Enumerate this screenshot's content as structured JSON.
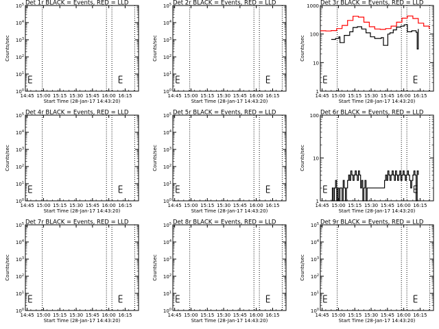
{
  "figure": {
    "panel_rows": 3,
    "panel_cols": 3,
    "colors": {
      "events": "#000000",
      "lld": "#ff0000",
      "axes": "#000000",
      "background": "#ffffff"
    }
  },
  "chart_data": [
    {
      "type": "line",
      "title": "Det 1r BLACK = Events, RED = LLD",
      "xlabel": "Start Time (28-Jan-17 14:43:20)",
      "ylabel": "Counts/sec",
      "x_ticks": [
        "14:45",
        "15:00",
        "15:15",
        "15:30",
        "15:45",
        "16:00",
        "16:15"
      ],
      "x_tick_minutes": [
        1.67,
        16.67,
        31.67,
        46.67,
        61.67,
        76.67,
        91.67
      ],
      "xlim_minutes": [
        0,
        104
      ],
      "yscale": "log",
      "ylim": [
        1,
        100000
      ],
      "y_ticks": [
        "10^0",
        "10^1",
        "10^2",
        "10^3",
        "10^4",
        "10^5"
      ],
      "y_tick_values": [
        1,
        10,
        100,
        1000,
        10000,
        100000
      ],
      "vlines_minutes": [
        15.5,
        74.5,
        79.5,
        100.5
      ],
      "series": []
    },
    {
      "type": "line",
      "title": "Det 2r BLACK = Events, RED = LLD",
      "xlabel": "Start Time (28-Jan-17 14:43:20)",
      "ylabel": "Counts/sec",
      "x_ticks": [
        "14:45",
        "15:00",
        "15:15",
        "15:30",
        "15:45",
        "16:00",
        "16:15"
      ],
      "x_tick_minutes": [
        1.67,
        16.67,
        31.67,
        46.67,
        61.67,
        76.67,
        91.67
      ],
      "xlim_minutes": [
        0,
        104
      ],
      "yscale": "log",
      "ylim": [
        1,
        100000
      ],
      "y_ticks": [
        "10^0",
        "10^1",
        "10^2",
        "10^3",
        "10^4",
        "10^5"
      ],
      "y_tick_values": [
        1,
        10,
        100,
        1000,
        10000,
        100000
      ],
      "vlines_minutes": [
        15.5,
        74.5,
        79.5,
        100.5
      ],
      "series": []
    },
    {
      "type": "line",
      "title": "Det 3r BLACK = Events, RED = LLD",
      "xlabel": "Start Time (28-Jan-17 14:43:20)",
      "ylabel": "Counts/sec",
      "x_ticks": [
        "14:45",
        "15:00",
        "15:15",
        "15:30",
        "15:45",
        "16:00",
        "16:15"
      ],
      "x_tick_minutes": [
        1.67,
        16.67,
        31.67,
        46.67,
        61.67,
        76.67,
        91.67
      ],
      "xlim_minutes": [
        0,
        104
      ],
      "yscale": "log",
      "ylim": [
        1,
        1000
      ],
      "y_ticks": [
        "1",
        "10",
        "100",
        "1000"
      ],
      "y_tick_values": [
        1,
        10,
        100,
        1000
      ],
      "vlines_minutes": [
        15.5,
        74.5,
        79.5,
        100.5
      ],
      "series": [
        {
          "color": "#ff0000",
          "x": [
            0,
            5,
            10,
            15,
            20,
            25,
            30,
            35,
            40,
            45,
            50,
            55,
            60,
            65,
            70,
            75,
            80,
            85,
            90,
            95,
            100
          ],
          "y": [
            130,
            128,
            132,
            155,
            200,
            300,
            420,
            390,
            260,
            180,
            150,
            145,
            155,
            190,
            260,
            360,
            430,
            350,
            240,
            190,
            150
          ]
        },
        {
          "color": "#000000",
          "x": [
            10,
            14,
            17,
            18,
            22,
            27,
            30,
            34,
            38,
            42,
            46,
            50,
            56,
            58,
            62,
            64,
            67,
            70,
            74,
            77,
            79,
            80,
            84,
            88,
            89,
            90
          ],
          "y": [
            65,
            70,
            80,
            50,
            90,
            120,
            170,
            180,
            150,
            110,
            80,
            70,
            75,
            40,
            100,
            110,
            140,
            175,
            190,
            210,
            215,
            120,
            130,
            115,
            30,
            150
          ]
        }
      ]
    },
    {
      "type": "line",
      "title": "Det 4r BLACK = Events, RED = LLD",
      "xlabel": "Start Time (28-Jan-17 14:43:20)",
      "ylabel": "Counts/sec",
      "x_ticks": [
        "14:45",
        "15:00",
        "15:15",
        "15:30",
        "15:45",
        "16:00",
        "16:15"
      ],
      "x_tick_minutes": [
        1.67,
        16.67,
        31.67,
        46.67,
        61.67,
        76.67,
        91.67
      ],
      "xlim_minutes": [
        0,
        104
      ],
      "yscale": "log",
      "ylim": [
        1,
        100000
      ],
      "y_ticks": [
        "10^0",
        "10^1",
        "10^2",
        "10^3",
        "10^4",
        "10^5"
      ],
      "y_tick_values": [
        1,
        10,
        100,
        1000,
        10000,
        100000
      ],
      "vlines_minutes": [
        15.5,
        74.5,
        79.5,
        100.5
      ],
      "series": []
    },
    {
      "type": "line",
      "title": "Det 5r BLACK = Events, RED = LLD",
      "xlabel": "Start Time (28-Jan-17 14:43:20)",
      "ylabel": "Counts/sec",
      "x_ticks": [
        "14:45",
        "15:00",
        "15:15",
        "15:30",
        "15:45",
        "16:00",
        "16:15"
      ],
      "x_tick_minutes": [
        1.67,
        16.67,
        31.67,
        46.67,
        61.67,
        76.67,
        91.67
      ],
      "xlim_minutes": [
        0,
        104
      ],
      "yscale": "log",
      "ylim": [
        1,
        100000
      ],
      "y_ticks": [
        "10^0",
        "10^1",
        "10^2",
        "10^3",
        "10^4",
        "10^5"
      ],
      "y_tick_values": [
        1,
        10,
        100,
        1000,
        10000,
        100000
      ],
      "vlines_minutes": [
        15.5,
        74.5,
        79.5,
        100.5
      ],
      "series": []
    },
    {
      "type": "line",
      "title": "Det 6r BLACK = Events, RED = LLD",
      "xlabel": "Start Time (28-Jan-17 14:43:20)",
      "ylabel": "Counts/sec",
      "x_ticks": [
        "14:45",
        "15:00",
        "15:15",
        "15:30",
        "15:45",
        "16:00",
        "16:15"
      ],
      "x_tick_minutes": [
        1.67,
        16.67,
        31.67,
        46.67,
        61.67,
        76.67,
        91.67
      ],
      "xlim_minutes": [
        0,
        104
      ],
      "yscale": "log",
      "ylim": [
        1,
        100
      ],
      "y_ticks": [
        "1",
        "10",
        "100"
      ],
      "y_tick_values": [
        1,
        10,
        100
      ],
      "vlines_minutes": [
        15.5,
        74.5,
        79.5,
        100.5
      ],
      "series": [
        {
          "color": "#000000",
          "x": [
            10,
            11,
            12,
            13,
            14,
            15,
            16,
            17,
            18,
            19,
            20,
            21,
            22,
            23,
            24,
            25,
            26,
            27,
            28,
            29,
            30,
            31,
            32,
            33,
            34,
            35,
            36,
            37,
            38,
            39,
            40,
            41,
            42,
            43,
            44,
            45,
            46,
            47,
            48,
            49,
            50,
            51,
            52,
            53,
            54,
            55,
            56,
            57,
            58,
            59,
            60,
            61,
            62,
            63,
            64,
            65,
            66,
            67,
            68,
            69,
            70,
            71,
            72,
            73,
            74,
            75,
            76,
            77,
            78,
            79,
            80,
            81,
            82,
            83,
            84,
            85,
            86,
            87,
            88,
            89,
            90
          ],
          "y": [
            1,
            2,
            1,
            2,
            3,
            1,
            2,
            1,
            2,
            2,
            1,
            3,
            2,
            1,
            2,
            3,
            4,
            3,
            5,
            4,
            3,
            4,
            5,
            4,
            3,
            5,
            4,
            2,
            3,
            1,
            2,
            3,
            1,
            2,
            2,
            2,
            2,
            2,
            2,
            2,
            2,
            2,
            2,
            2,
            2,
            2,
            2,
            2,
            2,
            3,
            4,
            3,
            5,
            4,
            3,
            4,
            5,
            4,
            3,
            5,
            4,
            3,
            4,
            5,
            3,
            4,
            5,
            4,
            3,
            4,
            5,
            4,
            3,
            2,
            3,
            4,
            5,
            4,
            1,
            5,
            4
          ]
        }
      ]
    },
    {
      "type": "line",
      "title": "Det 7r BLACK = Events, RED = LLD",
      "xlabel": "Start Time (28-Jan-17 14:43:20)",
      "ylabel": "Counts/sec",
      "x_ticks": [
        "14:45",
        "15:00",
        "15:15",
        "15:30",
        "15:45",
        "16:00",
        "16:15"
      ],
      "x_tick_minutes": [
        1.67,
        16.67,
        31.67,
        46.67,
        61.67,
        76.67,
        91.67
      ],
      "xlim_minutes": [
        0,
        104
      ],
      "yscale": "log",
      "ylim": [
        1,
        100000
      ],
      "y_ticks": [
        "10^0",
        "10^1",
        "10^2",
        "10^3",
        "10^4",
        "10^5"
      ],
      "y_tick_values": [
        1,
        10,
        100,
        1000,
        10000,
        100000
      ],
      "vlines_minutes": [
        15.5,
        74.5,
        79.5,
        100.5
      ],
      "series": []
    },
    {
      "type": "line",
      "title": "Det 8r BLACK = Events, RED = LLD",
      "xlabel": "Start Time (28-Jan-17 14:43:20)",
      "ylabel": "Counts/sec",
      "x_ticks": [
        "14:45",
        "15:00",
        "15:15",
        "15:30",
        "15:45",
        "16:00",
        "16:15"
      ],
      "x_tick_minutes": [
        1.67,
        16.67,
        31.67,
        46.67,
        61.67,
        76.67,
        91.67
      ],
      "xlim_minutes": [
        0,
        104
      ],
      "yscale": "log",
      "ylim": [
        1,
        100000
      ],
      "y_ticks": [
        "10^0",
        "10^1",
        "10^2",
        "10^3",
        "10^4",
        "10^5"
      ],
      "y_tick_values": [
        1,
        10,
        100,
        1000,
        10000,
        100000
      ],
      "vlines_minutes": [
        15.5,
        74.5,
        79.5,
        100.5
      ],
      "series": []
    },
    {
      "type": "line",
      "title": "Det 9r BLACK = Events, RED = LLD",
      "xlabel": "Start Time (28-Jan-17 14:43:20)",
      "ylabel": "Counts/sec",
      "x_ticks": [
        "14:45",
        "15:00",
        "15:15",
        "15:30",
        "15:45",
        "16:00",
        "16:15"
      ],
      "x_tick_minutes": [
        1.67,
        16.67,
        31.67,
        46.67,
        61.67,
        76.67,
        91.67
      ],
      "xlim_minutes": [
        0,
        104
      ],
      "yscale": "log",
      "ylim": [
        1,
        100000
      ],
      "y_ticks": [
        "10^0",
        "10^1",
        "10^2",
        "10^3",
        "10^4",
        "10^5"
      ],
      "y_tick_values": [
        1,
        10,
        100,
        1000,
        10000,
        100000
      ],
      "vlines_minutes": [
        15.5,
        74.5,
        79.5,
        100.5
      ],
      "series": []
    }
  ]
}
